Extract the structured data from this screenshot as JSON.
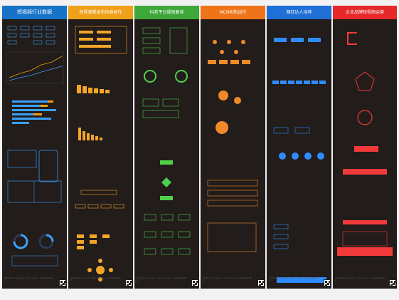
{
  "columns": [
    {
      "title": "短视频行业数据",
      "color": "#1673c8",
      "accent": "#3aa0ff"
    },
    {
      "title": "短视频脚本和内容创作",
      "color": "#f0a11a",
      "accent": "#f4a629"
    },
    {
      "title": "抖音平台规则解读",
      "color": "#3ea83a",
      "accent": "#4fd04a"
    },
    {
      "title": "MCN机构运作",
      "color": "#ef7419",
      "accent": "#f08a28"
    },
    {
      "title": "网红达人培养",
      "color": "#1f6fd6",
      "accent": "#2f8cff"
    },
    {
      "title": "企业品牌短视频运营",
      "color": "#e6282a",
      "accent": "#f23a3a"
    }
  ],
  "footer_text": "本资料仅供学习交流使用，请勿用于商业用途。如有侵权请联系删除。",
  "icons": {
    "qr": "qr-code-icon"
  }
}
